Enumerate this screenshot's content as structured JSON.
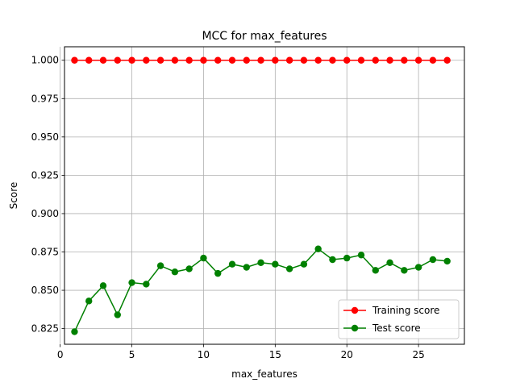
{
  "chart_data": {
    "type": "line",
    "title": "MCC for max_features",
    "xlabel": "max_features",
    "ylabel": "Score",
    "xlim": [
      0.3,
      28.2
    ],
    "ylim": [
      0.8148,
      1.0088
    ],
    "xticks": [
      0,
      5,
      10,
      15,
      20,
      25
    ],
    "yticks": [
      0.825,
      0.85,
      0.875,
      0.9,
      0.925,
      0.95,
      0.975,
      1.0
    ],
    "xtick_labels": [
      "0",
      "5",
      "10",
      "15",
      "20",
      "25"
    ],
    "ytick_labels": [
      "0.825",
      "0.850",
      "0.875",
      "0.900",
      "0.925",
      "0.950",
      "0.975",
      "1.000"
    ],
    "grid": true,
    "legend_position": "lower-right",
    "x": [
      1,
      2,
      3,
      4,
      5,
      6,
      7,
      8,
      9,
      10,
      11,
      12,
      13,
      14,
      15,
      16,
      17,
      18,
      19,
      20,
      21,
      22,
      23,
      24,
      25,
      26,
      27
    ],
    "series": [
      {
        "name": "Training score",
        "color": "#ff0000",
        "marker": "circle",
        "values": [
          1,
          1,
          1,
          1,
          1,
          1,
          1,
          1,
          1,
          1,
          1,
          1,
          1,
          1,
          1,
          1,
          1,
          1,
          1,
          1,
          1,
          1,
          1,
          1,
          1,
          1,
          1
        ]
      },
      {
        "name": "Test score",
        "color": "#008000",
        "marker": "circle",
        "values": [
          0.823,
          0.843,
          0.853,
          0.834,
          0.855,
          0.854,
          0.866,
          0.862,
          0.864,
          0.871,
          0.861,
          0.867,
          0.865,
          0.868,
          0.867,
          0.864,
          0.867,
          0.877,
          0.87,
          0.871,
          0.873,
          0.863,
          0.868,
          0.863,
          0.865,
          0.87,
          0.869
        ]
      }
    ]
  }
}
